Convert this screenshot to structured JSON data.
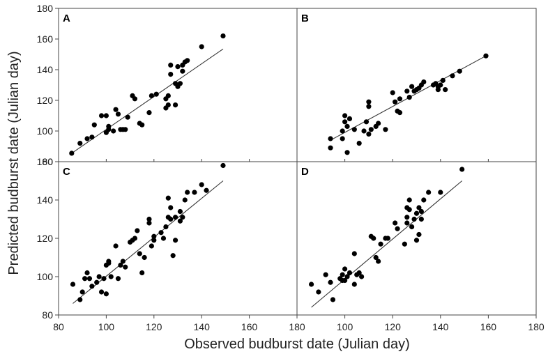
{
  "chart_data": {
    "type": "scatter",
    "xlabel": "Observed budburst date (Julian day)",
    "ylabel": "Predicted budburst date (Julian day)",
    "x_ticks": [
      80,
      100,
      120,
      140,
      160,
      180
    ],
    "y_ticks": [
      80,
      100,
      120,
      140,
      160,
      180
    ],
    "x_tick_labels": [
      "80",
      "100",
      "120",
      "140",
      "160",
      "180"
    ],
    "y_tick_labels_top": [
      "80",
      "100",
      "120",
      "140",
      "160",
      "180"
    ],
    "y_tick_labels_bottom": [
      "80",
      "100",
      "120",
      "140",
      "160"
    ],
    "xlim": [
      80,
      180
    ],
    "ylim": [
      80,
      180
    ],
    "grid": false,
    "panels": [
      {
        "id": "A",
        "label": "A",
        "xlim": [
          80,
          180
        ],
        "ylim": [
          80,
          180
        ],
        "fit_line": [
          [
            85.5,
            85.5
          ],
          [
            149,
            153.5
          ]
        ],
        "points": [
          [
            85.5,
            85.5
          ],
          [
            89,
            92
          ],
          [
            92,
            95
          ],
          [
            94,
            96
          ],
          [
            95,
            104
          ],
          [
            98,
            110
          ],
          [
            100,
            110
          ],
          [
            100,
            99
          ],
          [
            101,
            101
          ],
          [
            101,
            103
          ],
          [
            103,
            100
          ],
          [
            104,
            114
          ],
          [
            105,
            111
          ],
          [
            106,
            101
          ],
          [
            107,
            101
          ],
          [
            108,
            101
          ],
          [
            109,
            109
          ],
          [
            111,
            123
          ],
          [
            112,
            121
          ],
          [
            114,
            105
          ],
          [
            115,
            104
          ],
          [
            118,
            112
          ],
          [
            119,
            123
          ],
          [
            121,
            124
          ],
          [
            125,
            115
          ],
          [
            125,
            121
          ],
          [
            126,
            117
          ],
          [
            126,
            123
          ],
          [
            127,
            137
          ],
          [
            127,
            143
          ],
          [
            129,
            131
          ],
          [
            129,
            117
          ],
          [
            130,
            142
          ],
          [
            130,
            129
          ],
          [
            131,
            131
          ],
          [
            132,
            139
          ],
          [
            132,
            143
          ],
          [
            133,
            145
          ],
          [
            134,
            146
          ],
          [
            140,
            155
          ],
          [
            149,
            162
          ]
        ]
      },
      {
        "id": "B",
        "label": "B",
        "xlim": [
          80,
          180
        ],
        "ylim": [
          80,
          180
        ],
        "fit_line": [
          [
            94,
            94
          ],
          [
            159,
            149
          ]
        ],
        "points": [
          [
            94,
            95
          ],
          [
            94,
            89
          ],
          [
            99,
            100
          ],
          [
            99,
            95
          ],
          [
            100,
            106
          ],
          [
            100,
            110
          ],
          [
            101,
            103
          ],
          [
            101,
            86
          ],
          [
            102,
            108
          ],
          [
            104,
            101
          ],
          [
            106,
            92
          ],
          [
            108,
            100
          ],
          [
            109,
            106
          ],
          [
            110,
            98
          ],
          [
            110,
            116
          ],
          [
            110,
            119
          ],
          [
            111,
            101
          ],
          [
            113,
            103
          ],
          [
            114,
            105
          ],
          [
            117,
            101
          ],
          [
            120,
            125
          ],
          [
            121,
            119
          ],
          [
            122,
            113
          ],
          [
            123,
            112
          ],
          [
            123,
            121
          ],
          [
            126,
            126
          ],
          [
            127,
            122
          ],
          [
            128,
            129
          ],
          [
            129,
            126
          ],
          [
            130,
            127
          ],
          [
            131,
            128
          ],
          [
            132,
            130
          ],
          [
            133,
            132
          ],
          [
            137,
            130
          ],
          [
            138,
            131
          ],
          [
            139,
            127
          ],
          [
            139,
            129
          ],
          [
            140,
            130
          ],
          [
            141,
            133
          ],
          [
            142,
            127
          ],
          [
            145,
            136
          ],
          [
            148,
            139
          ],
          [
            159,
            149
          ]
        ]
      },
      {
        "id": "C",
        "label": "C",
        "xlim": [
          80,
          180
        ],
        "ylim": [
          80,
          160
        ],
        "fit_line": [
          [
            86,
            86
          ],
          [
            149,
            150
          ]
        ],
        "points": [
          [
            86,
            96
          ],
          [
            89,
            88
          ],
          [
            90,
            92
          ],
          [
            91,
            99
          ],
          [
            92,
            102
          ],
          [
            93,
            99
          ],
          [
            94,
            95
          ],
          [
            96,
            97
          ],
          [
            97,
            100
          ],
          [
            98,
            92
          ],
          [
            99,
            99
          ],
          [
            100,
            91
          ],
          [
            100,
            106
          ],
          [
            101,
            108
          ],
          [
            101,
            107
          ],
          [
            102,
            100
          ],
          [
            104,
            116
          ],
          [
            105,
            99
          ],
          [
            106,
            106
          ],
          [
            107,
            108
          ],
          [
            108,
            105
          ],
          [
            110,
            118
          ],
          [
            111,
            119
          ],
          [
            112,
            120
          ],
          [
            113,
            124
          ],
          [
            114,
            112
          ],
          [
            115,
            102
          ],
          [
            116,
            110
          ],
          [
            118,
            128
          ],
          [
            118,
            130
          ],
          [
            119,
            116
          ],
          [
            120,
            119
          ],
          [
            120,
            121
          ],
          [
            123,
            123
          ],
          [
            124,
            120
          ],
          [
            125,
            126
          ],
          [
            126,
            131
          ],
          [
            126,
            141
          ],
          [
            127,
            136
          ],
          [
            127,
            130
          ],
          [
            128,
            111
          ],
          [
            129,
            119
          ],
          [
            129,
            131
          ],
          [
            131,
            129
          ],
          [
            131,
            134
          ],
          [
            132,
            131
          ],
          [
            133,
            140
          ],
          [
            134,
            144
          ],
          [
            137,
            144
          ],
          [
            140,
            148
          ],
          [
            142,
            145
          ],
          [
            149,
            158
          ]
        ]
      },
      {
        "id": "D",
        "label": "D",
        "xlim": [
          80,
          180
        ],
        "ylim": [
          80,
          160
        ],
        "fit_line": [
          [
            86,
            84
          ],
          [
            149,
            150
          ]
        ],
        "points": [
          [
            86,
            96
          ],
          [
            89,
            92
          ],
          [
            92,
            101
          ],
          [
            94,
            97
          ],
          [
            95,
            88
          ],
          [
            98,
            99
          ],
          [
            99,
            101
          ],
          [
            99,
            98
          ],
          [
            100,
            104
          ],
          [
            100,
            98
          ],
          [
            101,
            100
          ],
          [
            102,
            102
          ],
          [
            104,
            96
          ],
          [
            104,
            112
          ],
          [
            105,
            101
          ],
          [
            106,
            102
          ],
          [
            107,
            100
          ],
          [
            111,
            121
          ],
          [
            112,
            120
          ],
          [
            113,
            110
          ],
          [
            114,
            108
          ],
          [
            115,
            117
          ],
          [
            117,
            120
          ],
          [
            118,
            120
          ],
          [
            121,
            128
          ],
          [
            122,
            125
          ],
          [
            125,
            117
          ],
          [
            126,
            128
          ],
          [
            126,
            131
          ],
          [
            126,
            136
          ],
          [
            127,
            140
          ],
          [
            127,
            135
          ],
          [
            128,
            126
          ],
          [
            129,
            130
          ],
          [
            130,
            119
          ],
          [
            130,
            133
          ],
          [
            131,
            136
          ],
          [
            131,
            122
          ],
          [
            132,
            134
          ],
          [
            132,
            130
          ],
          [
            133,
            140
          ],
          [
            135,
            144
          ],
          [
            140,
            144
          ],
          [
            149,
            156
          ]
        ]
      }
    ]
  }
}
